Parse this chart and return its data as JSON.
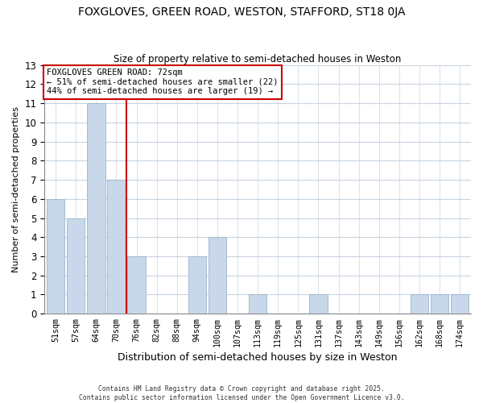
{
  "title": "FOXGLOVES, GREEN ROAD, WESTON, STAFFORD, ST18 0JA",
  "subtitle": "Size of property relative to semi-detached houses in Weston",
  "xlabel": "Distribution of semi-detached houses by size in Weston",
  "ylabel": "Number of semi-detached properties",
  "bar_labels": [
    "51sqm",
    "57sqm",
    "64sqm",
    "70sqm",
    "76sqm",
    "82sqm",
    "88sqm",
    "94sqm",
    "100sqm",
    "107sqm",
    "113sqm",
    "119sqm",
    "125sqm",
    "131sqm",
    "137sqm",
    "143sqm",
    "149sqm",
    "156sqm",
    "162sqm",
    "168sqm",
    "174sqm"
  ],
  "bar_values": [
    6,
    5,
    11,
    7,
    3,
    0,
    0,
    3,
    4,
    0,
    1,
    0,
    0,
    1,
    0,
    0,
    0,
    0,
    1,
    1,
    1
  ],
  "bar_color": "#c8d8ea",
  "bar_edge_color": "#9ab4cc",
  "vline_x": 3.5,
  "vline_color": "#cc0000",
  "ylim": [
    0,
    13
  ],
  "yticks": [
    0,
    1,
    2,
    3,
    4,
    5,
    6,
    7,
    8,
    9,
    10,
    11,
    12,
    13
  ],
  "annotation_title": "FOXGLOVES GREEN ROAD: 72sqm",
  "annotation_line1": "← 51% of semi-detached houses are smaller (22)",
  "annotation_line2": "44% of semi-detached houses are larger (19) →",
  "footer1": "Contains HM Land Registry data © Crown copyright and database right 2025.",
  "footer2": "Contains public sector information licensed under the Open Government Licence v3.0.",
  "bg_color": "#ffffff",
  "plot_bg_color": "#ffffff",
  "grid_color": "#c8d4e0"
}
